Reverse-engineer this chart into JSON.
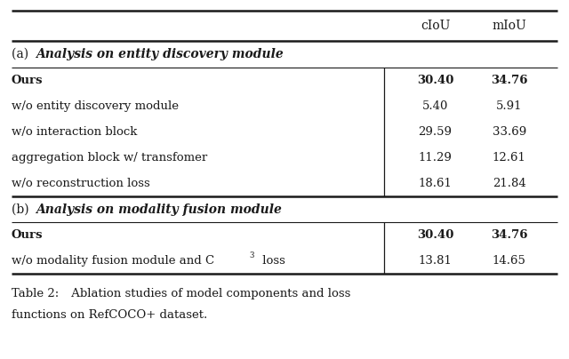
{
  "header": [
    "cIoU",
    "mIoU"
  ],
  "section_a_label_normal": "(a) ",
  "section_a_label_bold_italic": "Analysis on entity discovery module",
  "section_b_label_normal": "(b) ",
  "section_b_label_bold_italic": "Analysis on modality fusion module",
  "rows_a": [
    {
      "method": "Ours",
      "cIoU": "30.40",
      "mIoU": "34.76",
      "bold": true
    },
    {
      "method": "w/o entity discovery module",
      "cIoU": "5.40",
      "mIoU": "5.91",
      "bold": false
    },
    {
      "method": "w/o interaction block",
      "cIoU": "29.59",
      "mIoU": "33.69",
      "bold": false
    },
    {
      "method": "aggregation block w/ transfomer",
      "cIoU": "11.29",
      "mIoU": "12.61",
      "bold": false
    },
    {
      "method": "w/o reconstruction loss",
      "cIoU": "18.61",
      "mIoU": "21.84",
      "bold": false
    }
  ],
  "rows_b": [
    {
      "method": "Ours",
      "cIoU": "30.40",
      "mIoU": "34.76",
      "bold": true
    },
    {
      "method": "w/o modality fusion module and C^3 loss",
      "cIoU": "13.81",
      "mIoU": "14.65",
      "bold": false
    }
  ],
  "caption_bold": "Table 2:",
  "caption_rest": "  Ablation studies of model components and loss\nfunctions on RefCOCO+ dataset.",
  "bg_color": "#ffffff",
  "text_color": "#1a1a1a",
  "line_color": "#1a1a1a",
  "font_size_header": 10,
  "font_size_body": 9.5,
  "font_size_section": 10,
  "font_size_caption": 9.5
}
